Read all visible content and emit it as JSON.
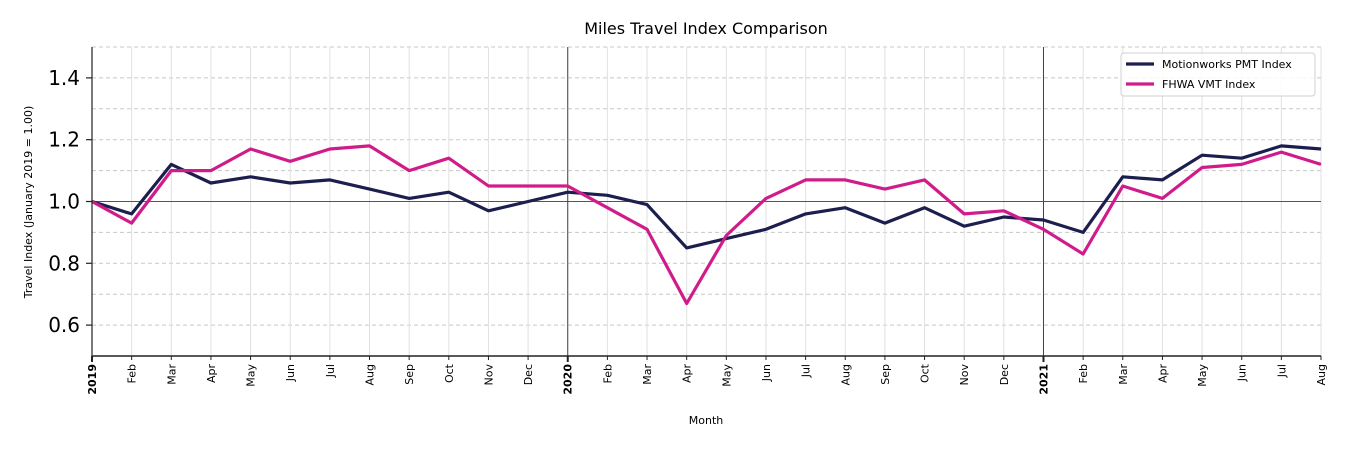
{
  "chart_data": {
    "type": "line",
    "title": "Miles Travel Index Comparison",
    "xlabel": "Month",
    "ylabel": "Travel Index (January 2019 = 1.00)",
    "ylim": [
      0.5,
      1.5
    ],
    "yticks": [
      0.6,
      0.8,
      1.0,
      1.2,
      1.4
    ],
    "ytick_labels": [
      "0.6",
      "0.8",
      "1.0",
      "1.2",
      "1.4"
    ],
    "grid": true,
    "reference_line": 1.0,
    "year_separators": [
      "2020",
      "2021"
    ],
    "legend_position": "upper right",
    "x": [
      "2019-01",
      "2019-02",
      "2019-03",
      "2019-04",
      "2019-05",
      "2019-06",
      "2019-07",
      "2019-08",
      "2019-09",
      "2019-10",
      "2019-11",
      "2019-12",
      "2020-01",
      "2020-02",
      "2020-03",
      "2020-04",
      "2020-05",
      "2020-06",
      "2020-07",
      "2020-08",
      "2020-09",
      "2020-10",
      "2020-11",
      "2020-12",
      "2021-01",
      "2021-02",
      "2021-03",
      "2021-04",
      "2021-05",
      "2021-06",
      "2021-07",
      "2021-08"
    ],
    "categories": [
      "2019",
      "Feb",
      "Mar",
      "Apr",
      "May",
      "Jun",
      "Jul",
      "Aug",
      "Sep",
      "Oct",
      "Nov",
      "Dec",
      "2020",
      "Feb",
      "Mar",
      "Apr",
      "May",
      "Jun",
      "Jul",
      "Aug",
      "Sep",
      "Oct",
      "Nov",
      "Dec",
      "2021",
      "Feb",
      "Mar",
      "Apr",
      "May",
      "Jun",
      "Jul",
      "Aug"
    ],
    "series": [
      {
        "name": "Motionworks PMT Index",
        "color": "#1c1f4e",
        "values": [
          1.0,
          0.96,
          1.12,
          1.06,
          1.08,
          1.06,
          1.07,
          1.04,
          1.01,
          1.03,
          0.97,
          1.0,
          1.03,
          1.02,
          0.99,
          0.85,
          0.88,
          0.91,
          0.96,
          0.98,
          0.93,
          0.98,
          0.92,
          0.95,
          0.94,
          0.9,
          1.08,
          1.07,
          1.15,
          1.14,
          1.18,
          1.17
        ]
      },
      {
        "name": "FHWA VMT Index",
        "color": "#d01c8b",
        "values": [
          1.0,
          0.93,
          1.1,
          1.1,
          1.17,
          1.13,
          1.17,
          1.18,
          1.1,
          1.14,
          1.05,
          1.05,
          1.05,
          0.98,
          0.91,
          0.67,
          0.89,
          1.01,
          1.07,
          1.07,
          1.04,
          1.07,
          0.96,
          0.97,
          0.91,
          0.83,
          1.05,
          1.01,
          1.11,
          1.12,
          1.16,
          1.12
        ]
      }
    ]
  }
}
